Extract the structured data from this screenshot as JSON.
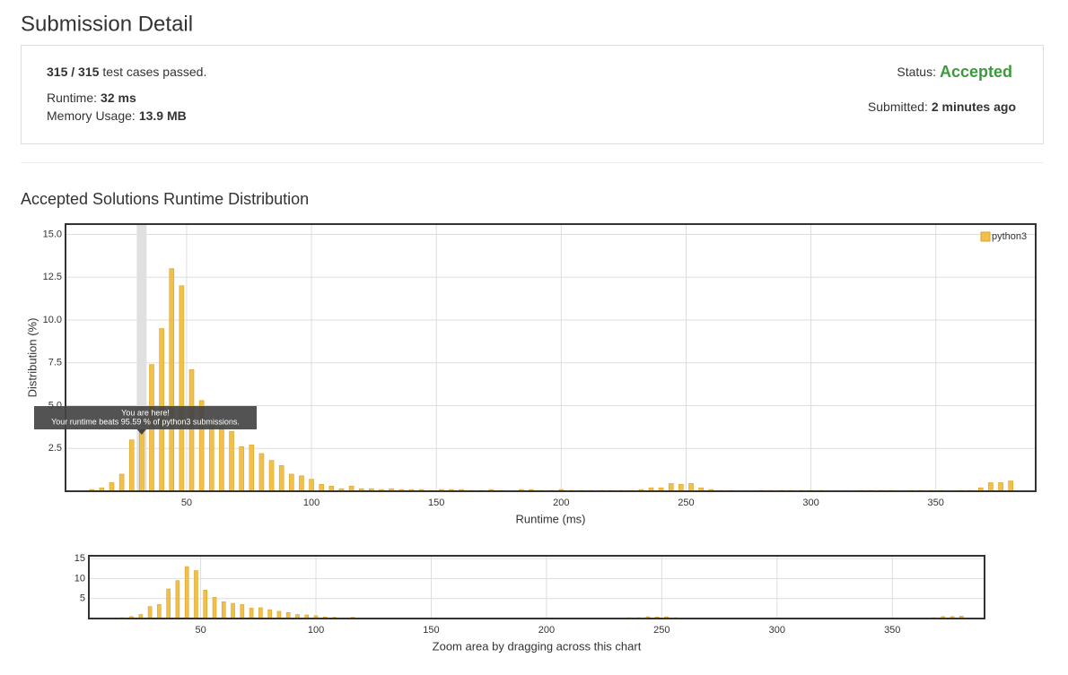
{
  "header": {
    "title": "Submission Detail"
  },
  "summary": {
    "passed": "315 / 315",
    "passed_text": "test cases passed.",
    "runtime_label": "Runtime:",
    "runtime": "32 ms",
    "memory_label": "Memory Usage:",
    "memory": "13.9 MB",
    "status_label": "Status:",
    "status": "Accepted",
    "submitted_label": "Submitted:",
    "submitted": "2 minutes ago"
  },
  "section": {
    "title": "Accepted Solutions Runtime Distribution"
  },
  "chart_data": [
    {
      "type": "bar",
      "ylabel": "Distribution (%)",
      "xlabel": "Runtime (ms)",
      "x": [
        12,
        16,
        20,
        24,
        28,
        32,
        36,
        40,
        44,
        48,
        52,
        56,
        60,
        64,
        68,
        72,
        76,
        80,
        84,
        88,
        92,
        96,
        100,
        104,
        108,
        112,
        116,
        120,
        124,
        128,
        132,
        136,
        140,
        144,
        148,
        152,
        156,
        160,
        164,
        168,
        172,
        176,
        184,
        188,
        192,
        196,
        200,
        204,
        208,
        212,
        216,
        220,
        224,
        228,
        232,
        236,
        240,
        244,
        248,
        252,
        256,
        260,
        264,
        268,
        280,
        284,
        288,
        292,
        296,
        300,
        304,
        320,
        324,
        328,
        332,
        340,
        344,
        348,
        352,
        360,
        364,
        368,
        372,
        376,
        380
      ],
      "series": [
        {
          "name": "python3",
          "color": "#f0c04a",
          "values": [
            0.1,
            0.2,
            0.5,
            1.0,
            3.0,
            3.5,
            7.4,
            9.5,
            13.0,
            12.0,
            7.1,
            5.3,
            4.2,
            3.8,
            3.5,
            2.6,
            2.7,
            2.2,
            1.8,
            1.5,
            1.0,
            0.9,
            0.7,
            0.4,
            0.3,
            0.15,
            0.3,
            0.15,
            0.15,
            0.1,
            0.15,
            0.1,
            0.1,
            0.1,
            0.05,
            0.1,
            0.1,
            0.1,
            0.05,
            0.05,
            0.1,
            0.05,
            0.1,
            0.1,
            0.05,
            0.05,
            0.1,
            0.05,
            0.05,
            0.05,
            0.05,
            0.05,
            0.05,
            0.05,
            0.1,
            0.2,
            0.2,
            0.45,
            0.4,
            0.45,
            0.2,
            0.1,
            0.05,
            0.05,
            0.05,
            0.05,
            0.05,
            0.05,
            0.05,
            0.05,
            0.05,
            0.05,
            0.05,
            0.05,
            0.05,
            0.05,
            0.05,
            0.05,
            0.05,
            0.05,
            0.05,
            0.2,
            0.5,
            0.5,
            0.6
          ]
        }
      ],
      "xlim": [
        1.5,
        390
      ],
      "ylim": [
        0,
        15.6
      ],
      "xticks": [
        50,
        100,
        150,
        200,
        250,
        300,
        350
      ],
      "yticks": [
        2.5,
        {
          "value": 5,
          "label": "5.0"
        },
        {
          "value": 7.5,
          "label": "7.5"
        },
        {
          "value": 10,
          "label": "10.0"
        },
        12.5,
        {
          "value": 15,
          "label": "15.0"
        }
      ],
      "grid": true,
      "legend": "top-right",
      "highlight_x": 32,
      "tooltip": {
        "title": "You are here!",
        "text": "Your runtime beats 95.59 % of python3 submissions."
      }
    },
    {
      "type": "bar",
      "xlabel": "Zoom area by dragging across this chart",
      "x": [
        12,
        16,
        20,
        24,
        28,
        32,
        36,
        40,
        44,
        48,
        52,
        56,
        60,
        64,
        68,
        72,
        76,
        80,
        84,
        88,
        92,
        96,
        100,
        104,
        108,
        112,
        116,
        120,
        124,
        128,
        132,
        136,
        140,
        144,
        148,
        152,
        156,
        160,
        164,
        168,
        172,
        176,
        184,
        188,
        192,
        196,
        200,
        204,
        208,
        212,
        216,
        220,
        224,
        228,
        232,
        236,
        240,
        244,
        248,
        252,
        256,
        260,
        264,
        268,
        280,
        284,
        288,
        292,
        296,
        300,
        304,
        320,
        324,
        328,
        332,
        340,
        344,
        348,
        352,
        360,
        364,
        368,
        372,
        376,
        380
      ],
      "series": [
        {
          "name": "python3",
          "color": "#f0c04a",
          "values": [
            0.1,
            0.2,
            0.5,
            1.0,
            3.0,
            3.5,
            7.4,
            9.5,
            13.0,
            12.0,
            7.1,
            5.3,
            4.2,
            3.8,
            3.5,
            2.6,
            2.7,
            2.2,
            1.8,
            1.5,
            1.0,
            0.9,
            0.7,
            0.4,
            0.3,
            0.15,
            0.3,
            0.15,
            0.15,
            0.1,
            0.15,
            0.1,
            0.1,
            0.1,
            0.05,
            0.1,
            0.1,
            0.1,
            0.05,
            0.05,
            0.1,
            0.05,
            0.1,
            0.1,
            0.05,
            0.05,
            0.1,
            0.05,
            0.05,
            0.05,
            0.05,
            0.05,
            0.05,
            0.05,
            0.1,
            0.2,
            0.2,
            0.45,
            0.4,
            0.45,
            0.2,
            0.1,
            0.05,
            0.05,
            0.05,
            0.05,
            0.05,
            0.05,
            0.05,
            0.05,
            0.05,
            0.05,
            0.05,
            0.05,
            0.05,
            0.05,
            0.05,
            0.05,
            0.05,
            0.05,
            0.05,
            0.2,
            0.5,
            0.5,
            0.6
          ]
        }
      ],
      "xlim": [
        1.5,
        390
      ],
      "ylim": [
        0,
        15.7
      ],
      "xticks": [
        50,
        100,
        150,
        200,
        250,
        300,
        350
      ],
      "yticks": [
        5,
        10,
        15
      ],
      "grid": true
    }
  ]
}
